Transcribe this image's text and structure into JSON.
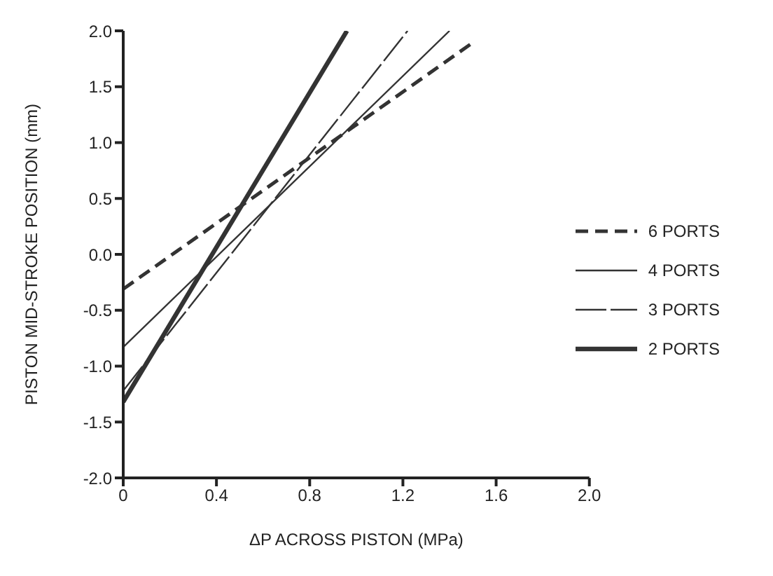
{
  "chart_data": {
    "type": "line",
    "xlabel": "ΔP ACROSS PISTON (MPa)",
    "ylabel": "PISTON MID-STROKE POSITION (mm)",
    "xlim": [
      0,
      2
    ],
    "xticks": [
      0,
      0.4,
      0.8,
      1.2,
      1.6,
      {
        "value": 2,
        "label": "2.0"
      }
    ],
    "ylim": [
      -2,
      2
    ],
    "yticks": [
      {
        "value": -2,
        "label": "-2.0"
      },
      -1.5,
      {
        "value": -1,
        "label": "-1.0"
      },
      -0.5,
      {
        "value": 0,
        "label": "0.0"
      },
      0.5,
      {
        "value": 1,
        "label": "1.0"
      },
      1.5,
      {
        "value": 2,
        "label": "2.0"
      }
    ],
    "legend": "right",
    "marker": "none",
    "series": [
      {
        "name": "6 PORTS",
        "color": "#333333",
        "line_style": "dashed",
        "x": [
          0,
          1.49
        ],
        "values": [
          -0.31,
          1.88
        ]
      },
      {
        "name": "4 PORTS",
        "color": "#333333",
        "line_style": "solid",
        "x": [
          0,
          1.4
        ],
        "values": [
          -0.83,
          2.0
        ]
      },
      {
        "name": "3 PORTS",
        "color": "#333333",
        "line_style": "dashed",
        "x": [
          0,
          1.22
        ],
        "values": [
          -1.22,
          2.0
        ]
      },
      {
        "name": "2 PORTS",
        "color": "#333333",
        "line_style": "solid",
        "x": [
          0,
          0.96
        ],
        "values": [
          -1.32,
          2.0
        ]
      }
    ]
  }
}
